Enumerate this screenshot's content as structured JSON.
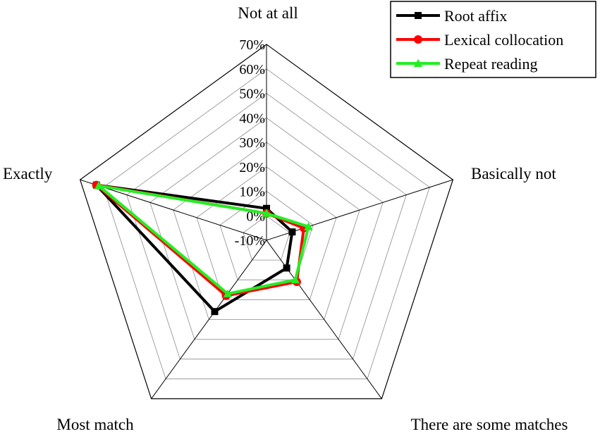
{
  "chart_data": {
    "type": "radar",
    "categories": [
      "Not at all",
      "Basically not",
      "There are some matches",
      "Most match",
      "Exactly"
    ],
    "r_ticks": [
      "70%",
      "60%",
      "50%",
      "40%",
      "30%",
      "20%",
      "10%",
      "0%",
      "-10%"
    ],
    "r_range": [
      -10,
      70
    ],
    "r_step": 10,
    "series": [
      {
        "name": "Root affix",
        "color": "#000000",
        "marker": "square",
        "values": [
          3,
          1,
          4,
          26,
          63
        ]
      },
      {
        "name": "Lexical collocation",
        "color": "#ff0000",
        "marker": "circle",
        "values": [
          1,
          6,
          11,
          18,
          63
        ]
      },
      {
        "name": "Repeat reading",
        "color": "#22ee22",
        "marker": "triangle",
        "values": [
          1,
          8,
          10,
          17,
          62
        ]
      }
    ],
    "legend_position": "top-right",
    "grid": true
  }
}
